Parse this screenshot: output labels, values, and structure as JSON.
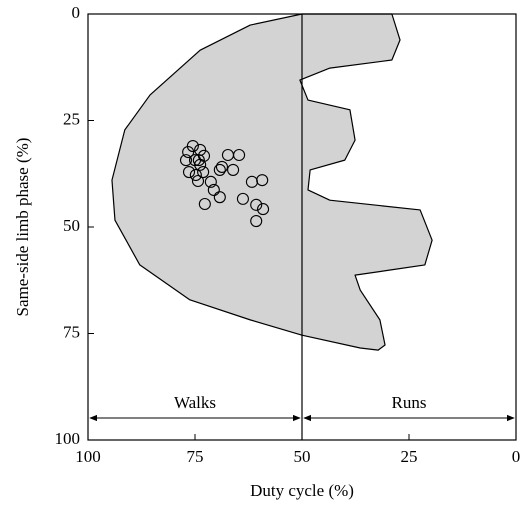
{
  "chart_data": {
    "type": "scatter",
    "xlabel": "Duty cycle (%)",
    "ylabel": "Same-side limb phase (%)",
    "xlim": [
      100,
      0
    ],
    "ylim": [
      0,
      100
    ],
    "xticks": [
      100,
      75,
      50,
      25,
      0
    ],
    "yticks": [
      0,
      25,
      50,
      75,
      100
    ],
    "divider_x": 50,
    "annotations": [
      "Walks",
      "Runs"
    ],
    "region": {
      "color": "#d3d3d3",
      "x": [
        50,
        41.1,
        29,
        27.1,
        29,
        43.5,
        50.5,
        48.6,
        38.8,
        37.6,
        40,
        48.1,
        48.6,
        43.5,
        22.4,
        19.6,
        21.3,
        29.4,
        37.6,
        36.4,
        31.8,
        30.6,
        32.2,
        36.4,
        50,
        62.1,
        76.2,
        87.9,
        93.7,
        94.4,
        91.4,
        85.5,
        73.8,
        62.1
      ],
      "y": [
        0,
        0,
        0,
        6.1,
        10.8,
        12.7,
        15.5,
        20.2,
        22.5,
        29.6,
        34.3,
        36.6,
        41.3,
        43.7,
        46,
        53.1,
        58.9,
        60.1,
        61.3,
        64.8,
        71.8,
        77.7,
        78.9,
        78.4,
        75.4,
        71.8,
        67.1,
        58.9,
        48.4,
        39,
        27.2,
        19,
        8.5,
        2.6
      ]
    },
    "x": [
      75.5,
      76.6,
      73.8,
      77.1,
      75,
      74.1,
      72.9,
      73.8,
      76.4,
      74.8,
      73.1,
      74.3,
      71.3,
      70.6,
      69.2,
      72.7,
      68.7,
      69.2,
      67.3,
      64.7,
      66.1,
      61.7,
      59.3,
      63.8,
      60.7,
      59.1,
      60.7
    ],
    "y": [
      31,
      32.4,
      31.9,
      34.3,
      34.3,
      34.3,
      33.3,
      35.4,
      37.1,
      37.8,
      37.1,
      39.2,
      39.4,
      41.3,
      43,
      44.6,
      35.9,
      36.6,
      33.1,
      33.1,
      36.6,
      39.4,
      39,
      43.4,
      44.8,
      45.8,
      48.6
    ]
  }
}
